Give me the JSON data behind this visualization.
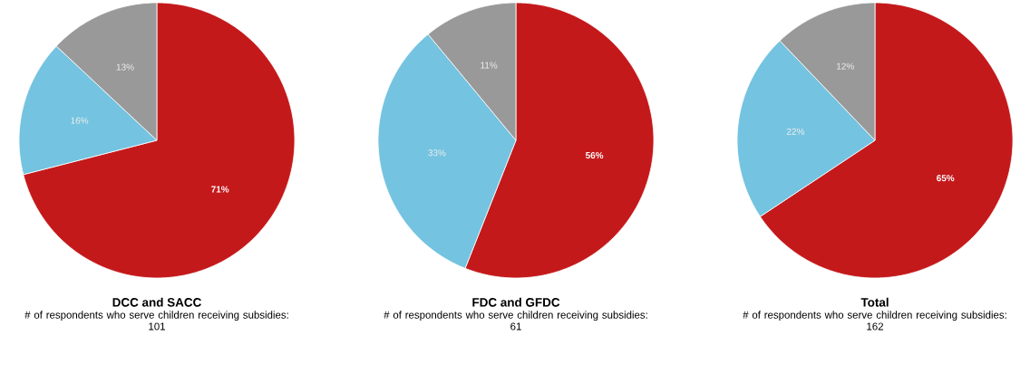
{
  "chart_data": [
    {
      "type": "pie",
      "title": "DCC and SACC",
      "annotations": [
        "# of respondents who serve children receiving subsidies:",
        "101"
      ],
      "categories": [
        null,
        null,
        null
      ],
      "values": [
        71,
        16,
        13
      ],
      "colors": [
        "#c4191b",
        "#74c3e0",
        "#999999"
      ],
      "value_labels": [
        "71%",
        "16%",
        "13%"
      ]
    },
    {
      "type": "pie",
      "title": "FDC and GFDC",
      "annotations": [
        "# of respondents who serve children receiving subsidies:",
        "61"
      ],
      "categories": [
        null,
        null,
        null
      ],
      "values": [
        56,
        33,
        11
      ],
      "colors": [
        "#c4191b",
        "#74c3e0",
        "#999999"
      ],
      "value_labels": [
        "56%",
        "33%",
        "11%"
      ]
    },
    {
      "type": "pie",
      "title": "Total",
      "annotations": [
        "# of respondents who serve children receiving subsidies:",
        "162"
      ],
      "categories": [
        null,
        null,
        null
      ],
      "values": [
        65,
        22,
        12
      ],
      "colors": [
        "#c4191b",
        "#74c3e0",
        "#999999"
      ],
      "value_labels": [
        "65%",
        "22%",
        "12%"
      ]
    }
  ]
}
